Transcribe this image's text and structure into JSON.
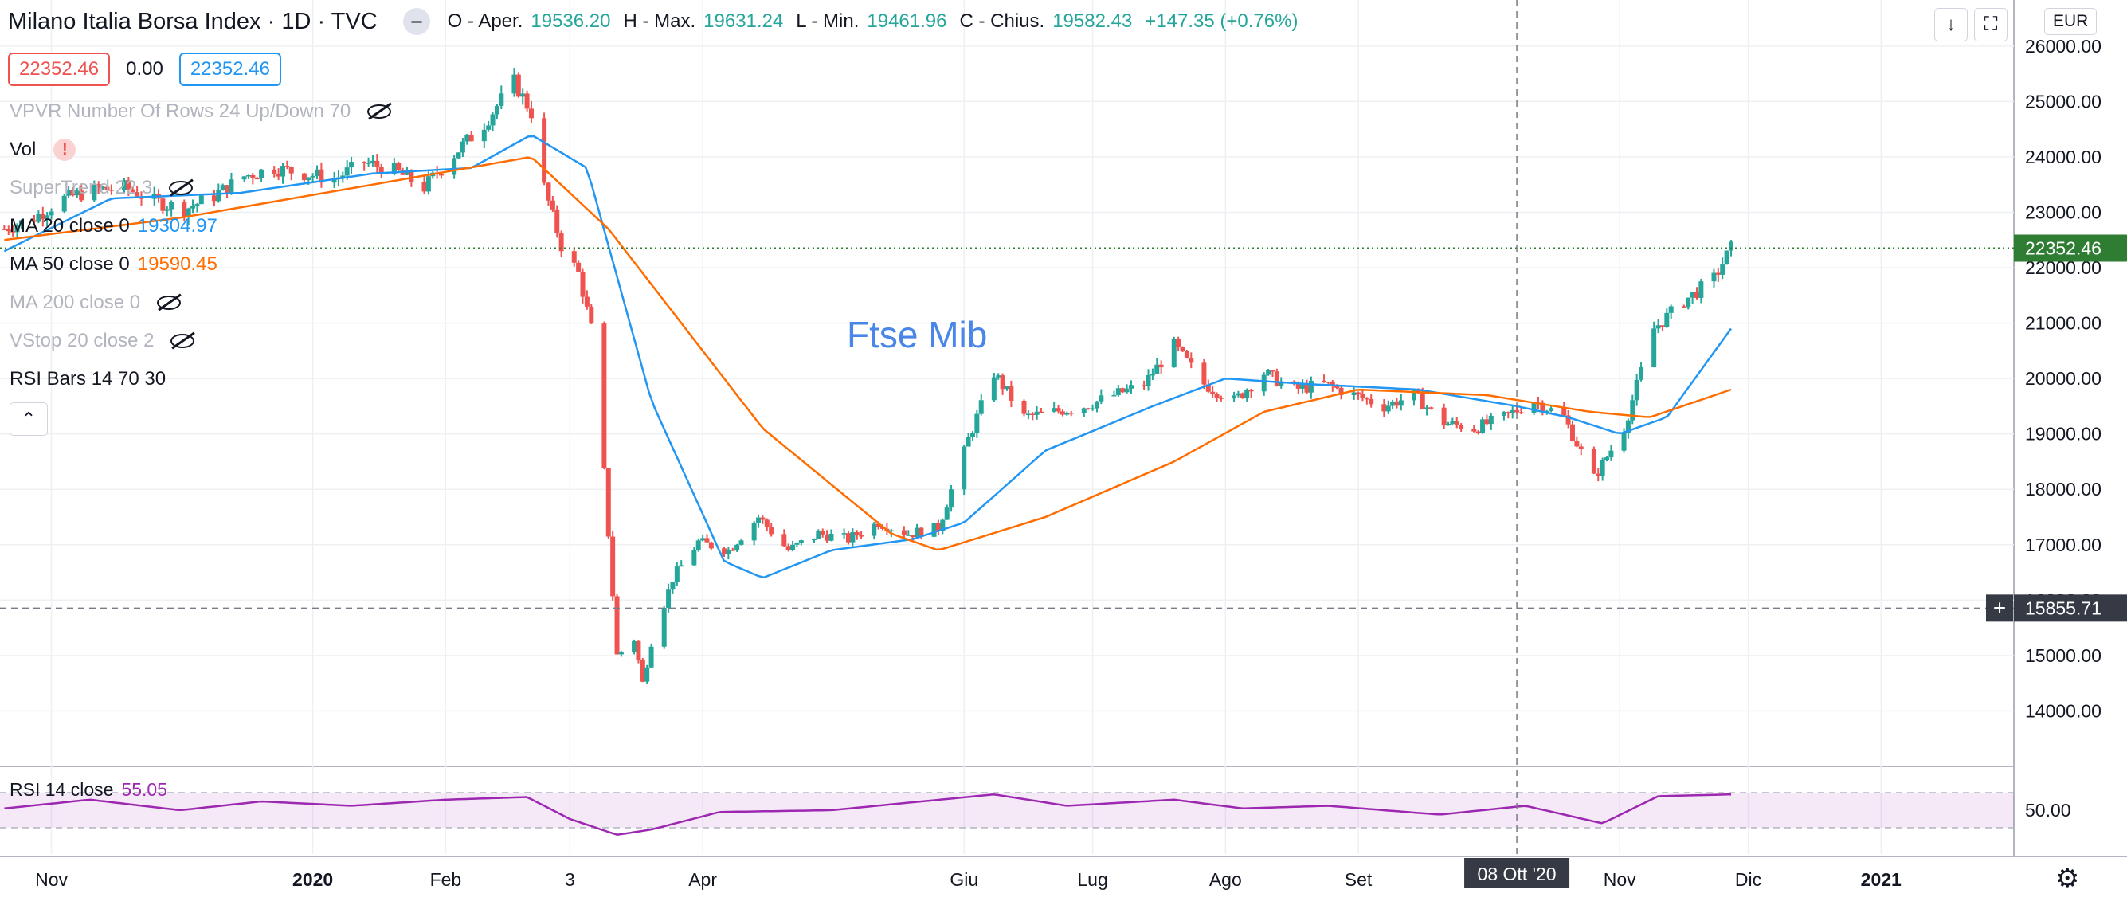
{
  "header": {
    "title": "Milano Italia Borsa Index · 1D · TVC",
    "ohlc": [
      {
        "k": "O - Aper.",
        "v": "19536.20"
      },
      {
        "k": "H - Max.",
        "v": "19631.24"
      },
      {
        "k": "L - Min.",
        "v": "19461.96"
      },
      {
        "k": "C - Chius.",
        "v": "19582.43"
      }
    ],
    "change": "+147.35 (+0.76%)"
  },
  "price_boxes": {
    "a": "22352.46",
    "b": "0.00",
    "c": "22352.46"
  },
  "legend": {
    "vpvr": "VPVR Number Of Rows 24 Up/Down 70",
    "vol": "Vol",
    "supertrend": "SuperTrend 22 3",
    "ma20": "MA 20 close 0",
    "ma20_val": "19304.97",
    "ma50": "MA 50 close 0",
    "ma50_val": "19590.45",
    "ma200": "MA 200 close 0",
    "vstop": "VStop 20 close 2",
    "rsibars": "RSI Bars 14 70 30"
  },
  "rsi_panel": {
    "label": "RSI 14 close",
    "value": "55.05",
    "axis_tick": "50.00"
  },
  "currency": "EUR",
  "annotation": "Ftse Mib",
  "icons": {
    "download": "download-icon",
    "fullscreen": "fullscreen-icon",
    "settings": "gear-icon",
    "eye": "eye-off-icon",
    "collapse": "chevron-up-icon",
    "warn": "warning-icon"
  },
  "colors": {
    "up": "#26a69a",
    "down": "#ef5350",
    "ma20": "#2196f3",
    "ma50": "#ff6d00",
    "rsi": "#9c27b0",
    "last_price": "#2e7d32"
  },
  "chart_data": {
    "type": "candlestick",
    "title": "Milano Italia Borsa Index · 1D · TVC",
    "y_axis": {
      "ticks": [
        14000,
        15000,
        16000,
        17000,
        18000,
        19000,
        20000,
        21000,
        22000,
        23000,
        24000,
        25000,
        26000
      ],
      "range": [
        13100,
        26400
      ],
      "labels": [
        "14000.00",
        "15000.00",
        "16000.00",
        "17000.00",
        "18000.00",
        "19000.00",
        "20000.00",
        "21000.00",
        "22000.00",
        "23000.00",
        "24000.00",
        "25000.00",
        "26000.00"
      ]
    },
    "x_axis": {
      "labels": [
        "Nov",
        "2020",
        "Feb",
        "3",
        "Apr",
        "Giu",
        "Lug",
        "Ago",
        "Set",
        "Nov",
        "Dic",
        "2021"
      ],
      "range": [
        "2019-10-20",
        "2021-02-01"
      ]
    },
    "last_price": "22352.46",
    "crosshair": {
      "date_label": "08 Ott '20",
      "price_label": "15855.71",
      "date": "2020-10-08",
      "price": 15855.71
    },
    "close_series": [
      [
        "2019-10-21",
        22700
      ],
      [
        "2019-10-28",
        22900
      ],
      [
        "2019-11-04",
        23250
      ],
      [
        "2019-11-11",
        23400
      ],
      [
        "2019-11-18",
        23450
      ],
      [
        "2019-11-25",
        23200
      ],
      [
        "2019-12-02",
        23050
      ],
      [
        "2019-12-09",
        23300
      ],
      [
        "2019-12-16",
        23650
      ],
      [
        "2019-12-23",
        23800
      ],
      [
        "2019-12-30",
        23700
      ],
      [
        "2020-01-06",
        23600
      ],
      [
        "2020-01-13",
        23900
      ],
      [
        "2020-01-20",
        23750
      ],
      [
        "2020-01-27",
        23450
      ],
      [
        "2020-02-03",
        24050
      ],
      [
        "2020-02-10",
        24600
      ],
      [
        "2020-02-17",
        25350
      ],
      [
        "2020-02-21",
        24800
      ],
      [
        "2020-02-24",
        23450
      ],
      [
        "2020-02-28",
        22400
      ],
      [
        "2020-03-03",
        21900
      ],
      [
        "2020-03-06",
        20900
      ],
      [
        "2020-03-09",
        18300
      ],
      [
        "2020-03-12",
        15000
      ],
      [
        "2020-03-16",
        15300
      ],
      [
        "2020-03-18",
        14500
      ],
      [
        "2020-03-20",
        15250
      ],
      [
        "2020-03-25",
        16400
      ],
      [
        "2020-03-31",
        17050
      ],
      [
        "2020-04-07",
        16900
      ],
      [
        "2020-04-14",
        17500
      ],
      [
        "2020-04-21",
        16900
      ],
      [
        "2020-04-28",
        17200
      ],
      [
        "2020-05-05",
        17100
      ],
      [
        "2020-05-12",
        17400
      ],
      [
        "2020-05-19",
        17200
      ],
      [
        "2020-05-26",
        17300
      ],
      [
        "2020-06-02",
        18900
      ],
      [
        "2020-06-08",
        20100
      ],
      [
        "2020-06-15",
        19300
      ],
      [
        "2020-06-22",
        19400
      ],
      [
        "2020-06-29",
        19500
      ],
      [
        "2020-07-06",
        19700
      ],
      [
        "2020-07-13",
        19900
      ],
      [
        "2020-07-20",
        20600
      ],
      [
        "2020-07-27",
        19900
      ],
      [
        "2020-08-03",
        19600
      ],
      [
        "2020-08-10",
        20100
      ],
      [
        "2020-08-17",
        19800
      ],
      [
        "2020-08-24",
        19900
      ],
      [
        "2020-08-31",
        19700
      ],
      [
        "2020-09-07",
        19500
      ],
      [
        "2020-09-14",
        19700
      ],
      [
        "2020-09-21",
        19200
      ],
      [
        "2020-09-28",
        19100
      ],
      [
        "2020-10-05",
        19300
      ],
      [
        "2020-10-12",
        19600
      ],
      [
        "2020-10-19",
        19300
      ],
      [
        "2020-10-26",
        18200
      ],
      [
        "2020-11-02",
        19100
      ],
      [
        "2020-11-09",
        20900
      ],
      [
        "2020-11-16",
        21400
      ],
      [
        "2020-11-23",
        21800
      ],
      [
        "2020-11-27",
        22352.46
      ]
    ],
    "ma20_series": [
      [
        "2019-10-21",
        22300
      ],
      [
        "2019-11-15",
        23250
      ],
      [
        "2019-12-15",
        23350
      ],
      [
        "2020-01-15",
        23700
      ],
      [
        "2020-02-07",
        23800
      ],
      [
        "2020-02-21",
        24400
      ],
      [
        "2020-03-05",
        23800
      ],
      [
        "2020-03-20",
        19600
      ],
      [
        "2020-04-06",
        16700
      ],
      [
        "2020-04-15",
        16400
      ],
      [
        "2020-05-01",
        16900
      ],
      [
        "2020-05-20",
        17100
      ],
      [
        "2020-06-01",
        17400
      ],
      [
        "2020-06-20",
        18700
      ],
      [
        "2020-07-15",
        19500
      ],
      [
        "2020-08-01",
        20000
      ],
      [
        "2020-08-20",
        19900
      ],
      [
        "2020-09-15",
        19800
      ],
      [
        "2020-10-08",
        19500
      ],
      [
        "2020-10-20",
        19300
      ],
      [
        "2020-11-01",
        19000
      ],
      [
        "2020-11-12",
        19300
      ],
      [
        "2020-11-27",
        20900
      ]
    ],
    "ma50_series": [
      [
        "2019-10-21",
        22500
      ],
      [
        "2019-12-01",
        22900
      ],
      [
        "2020-01-15",
        23500
      ],
      [
        "2020-02-21",
        24000
      ],
      [
        "2020-03-10",
        22700
      ],
      [
        "2020-04-15",
        19100
      ],
      [
        "2020-05-15",
        17200
      ],
      [
        "2020-05-26",
        16900
      ],
      [
        "2020-06-20",
        17500
      ],
      [
        "2020-07-20",
        18500
      ],
      [
        "2020-08-10",
        19400
      ],
      [
        "2020-09-01",
        19800
      ],
      [
        "2020-10-01",
        19700
      ],
      [
        "2020-10-25",
        19400
      ],
      [
        "2020-11-08",
        19300
      ],
      [
        "2020-11-27",
        19800
      ]
    ],
    "rsi_series": [
      [
        "2019-10-21",
        52
      ],
      [
        "2019-11-10",
        62
      ],
      [
        "2019-12-01",
        50
      ],
      [
        "2019-12-20",
        60
      ],
      [
        "2020-01-10",
        55
      ],
      [
        "2020-02-01",
        62
      ],
      [
        "2020-02-20",
        65
      ],
      [
        "2020-03-01",
        40
      ],
      [
        "2020-03-12",
        22
      ],
      [
        "2020-03-20",
        28
      ],
      [
        "2020-04-05",
        48
      ],
      [
        "2020-05-01",
        50
      ],
      [
        "2020-06-08",
        68
      ],
      [
        "2020-06-25",
        55
      ],
      [
        "2020-07-20",
        62
      ],
      [
        "2020-08-05",
        52
      ],
      [
        "2020-08-25",
        55
      ],
      [
        "2020-09-20",
        45
      ],
      [
        "2020-10-10",
        55
      ],
      [
        "2020-10-28",
        35
      ],
      [
        "2020-11-10",
        66
      ],
      [
        "2020-11-27",
        68
      ]
    ]
  }
}
